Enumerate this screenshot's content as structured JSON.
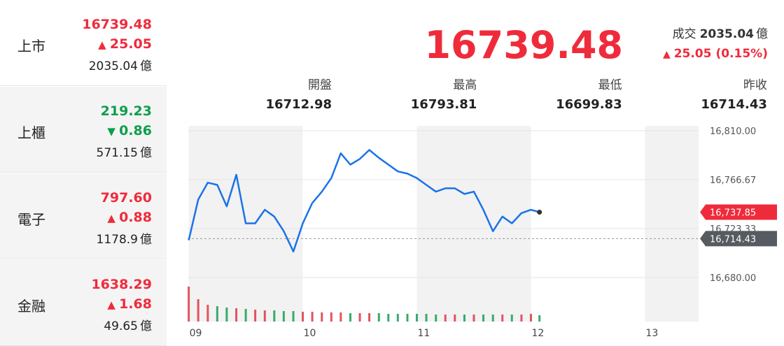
{
  "volume_unit": "億",
  "markets": [
    {
      "name": "上市",
      "value": "16739.48",
      "change": "25.05",
      "direction": "up",
      "volume": "2035.04"
    },
    {
      "name": "上櫃",
      "value": "219.23",
      "change": "0.86",
      "direction": "down",
      "volume": "571.15"
    },
    {
      "name": "電子",
      "value": "797.60",
      "change": "0.88",
      "direction": "up",
      "volume": "1178.9"
    },
    {
      "name": "金融",
      "value": "1638.29",
      "change": "1.68",
      "direction": "up",
      "volume": "49.65"
    }
  ],
  "header": {
    "price": "16739.48",
    "volume_label": "成交",
    "volume": "2035.04",
    "direction": "up",
    "change": "25.05",
    "change_pct": "(0.15%)"
  },
  "stats": [
    {
      "label": "開盤",
      "value": "16712.98"
    },
    {
      "label": "最高",
      "value": "16793.81"
    },
    {
      "label": "最低",
      "value": "16699.83"
    },
    {
      "label": "昨收",
      "value": "16714.43"
    }
  ],
  "chart": {
    "type": "line",
    "color": "#1a73e8",
    "x": [
      9,
      9.083,
      9.167,
      9.25,
      9.333,
      9.417,
      9.5,
      9.583,
      9.667,
      9.75,
      9.833,
      9.917,
      10,
      10.083,
      10.167,
      10.25,
      10.333,
      10.417,
      10.5,
      10.583,
      10.667,
      10.75,
      10.833,
      10.917,
      11,
      11.083,
      11.167,
      11.25,
      11.333,
      11.417,
      11.5,
      11.583,
      11.667,
      11.75,
      11.833,
      11.917,
      12,
      12.075
    ],
    "values": [
      16712.98,
      16749,
      16764,
      16762,
      16743,
      16771,
      16728,
      16728,
      16740,
      16734,
      16721,
      16703,
      16728,
      16746,
      16756,
      16768,
      16790,
      16780,
      16785,
      16793,
      16786,
      16780,
      16774,
      16772,
      16768,
      16762,
      16756,
      16759,
      16759,
      16754,
      16756,
      16740,
      16721,
      16734,
      16728,
      16737,
      16740,
      16737.85
    ],
    "volume": [
      50,
      32,
      24,
      22,
      20,
      19,
      18,
      17,
      16,
      16,
      15,
      15,
      14,
      14,
      13,
      13,
      13,
      12,
      12,
      12,
      12,
      11,
      11,
      11,
      11,
      11,
      10,
      10,
      10,
      10,
      10,
      10,
      10,
      10,
      10,
      10,
      11,
      9
    ],
    "xlim": [
      8.99,
      13.47
    ],
    "ylim": [
      16680,
      16810
    ],
    "xticks": [
      {
        "value": 9,
        "label": "09"
      },
      10,
      11,
      12,
      13
    ],
    "yticks": [
      {
        "value": 16680,
        "label": "16,680.00"
      },
      {
        "value": 16723.33,
        "label": "16,723.33"
      },
      {
        "value": 16766.67,
        "label": "16,766.67"
      },
      {
        "value": 16810,
        "label": "16,810.00"
      }
    ],
    "shaded_hours": [
      9,
      11,
      13
    ],
    "last": {
      "value": 16737.85,
      "label": "16,737.85"
    },
    "prev_close": {
      "value": 16714.43,
      "label": "16,714.43"
    }
  }
}
